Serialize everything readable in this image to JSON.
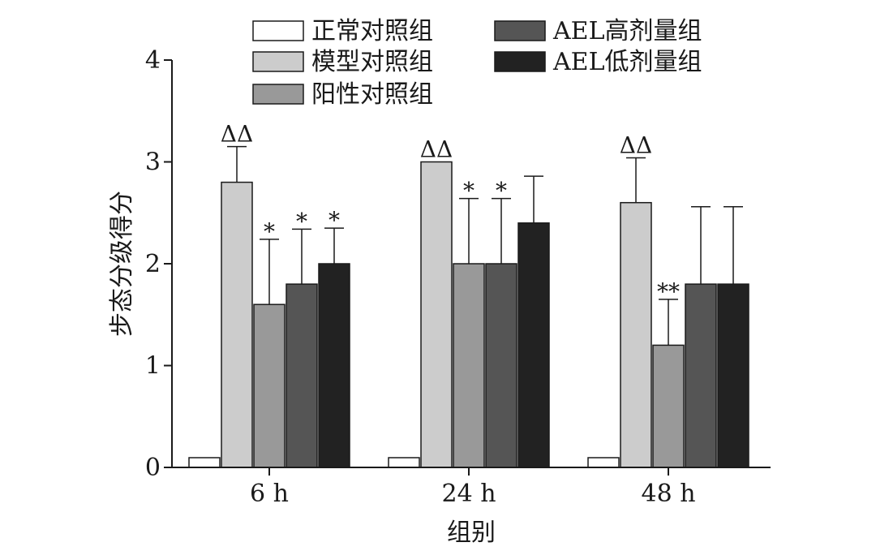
{
  "chart_data": {
    "type": "bar",
    "title": "",
    "xlabel": "组别",
    "ylabel": "步态分级得分",
    "ylim": [
      0,
      4
    ],
    "yticks": [
      "0",
      "1",
      "2",
      "3",
      "4"
    ],
    "categories": [
      "6 h",
      "24 h",
      "48 h"
    ],
    "series": [
      {
        "name": "正常对照组",
        "color": "#ffffff",
        "values": [
          0,
          0,
          0
        ],
        "errors": [
          0,
          0,
          0
        ],
        "marks": [
          "",
          "",
          ""
        ]
      },
      {
        "name": "模型对照组",
        "color": "#cccccc",
        "values": [
          2.8,
          3.0,
          2.6
        ],
        "errors": [
          0.35,
          0,
          0.44
        ],
        "marks": [
          "ΔΔ",
          "ΔΔ",
          "ΔΔ"
        ]
      },
      {
        "name": "阳性对照组",
        "color": "#999999",
        "values": [
          1.6,
          2.0,
          1.2
        ],
        "errors": [
          0.64,
          0.64,
          0.45
        ],
        "marks": [
          "*",
          "*",
          "**"
        ]
      },
      {
        "name": "AEL高剂量组",
        "color": "#555555",
        "values": [
          1.8,
          2.0,
          1.8
        ],
        "errors": [
          0.54,
          0.64,
          0.76
        ],
        "marks": [
          "*",
          "*",
          ""
        ]
      },
      {
        "name": "AEL低剂量组",
        "color": "#222222",
        "values": [
          2.0,
          2.4,
          1.8
        ],
        "errors": [
          0.35,
          0.46,
          0.76
        ],
        "marks": [
          "*",
          "",
          ""
        ]
      }
    ],
    "legend_position": "top"
  }
}
